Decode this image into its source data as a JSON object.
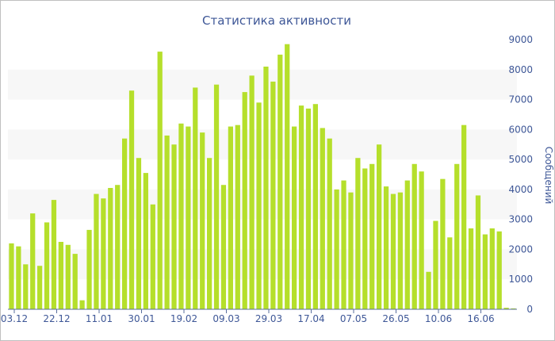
{
  "chart_data": {
    "type": "bar",
    "title": "Статистика активности",
    "ylabel": "Сообщений",
    "xlabel": "",
    "ylim": [
      0,
      9000
    ],
    "y_ticks": [
      0,
      1000,
      2000,
      3000,
      4000,
      5000,
      6000,
      7000,
      8000,
      9000
    ],
    "x_tick_labels": [
      "03.12",
      "22.12",
      "11.01",
      "30.01",
      "19.02",
      "09.03",
      "29.03",
      "17.04",
      "07.05",
      "26.05",
      "10.06",
      "16.06"
    ],
    "bar_color": "#b5df2b",
    "band_color": "#f7f7f7",
    "text_color": "#3e5797",
    "values": [
      2200,
      2100,
      1500,
      3200,
      1450,
      2900,
      3650,
      2250,
      2150,
      1850,
      300,
      2650,
      3850,
      3700,
      4050,
      4150,
      5700,
      7300,
      5050,
      4550,
      3500,
      8600,
      5800,
      5500,
      6200,
      6100,
      7400,
      5900,
      5050,
      7500,
      4150,
      6100,
      6150,
      7250,
      7800,
      6900,
      8100,
      7600,
      8500,
      8850,
      6100,
      6800,
      6700,
      6850,
      6050,
      5700,
      4000,
      4300,
      3900,
      5050,
      4700,
      4850,
      5500,
      4100,
      3850,
      3900,
      4300,
      4850,
      4600,
      1250,
      2950,
      4350,
      2400,
      4850,
      6150,
      2700,
      3800,
      2500,
      2700,
      2600,
      50,
      30
    ]
  }
}
